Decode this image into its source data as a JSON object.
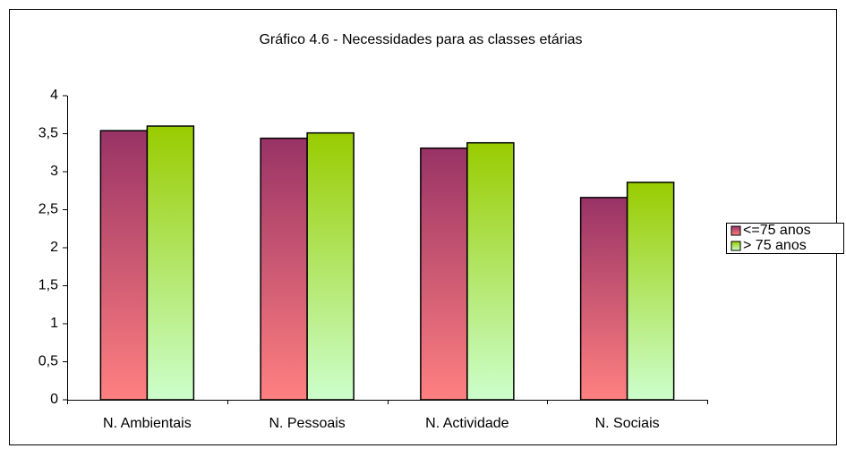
{
  "chart_data": {
    "type": "bar",
    "title": "Gráfico 4.6 - Necessidades para as classes etárias",
    "categories": [
      "N. Ambientais",
      "N. Pessoais",
      "N. Actividade",
      "N. Sociais"
    ],
    "series": [
      {
        "name": "<=75 anos",
        "color": "#993366",
        "values": [
          3.54,
          3.44,
          3.31,
          2.66
        ]
      },
      {
        "name": "> 75 anos",
        "color": "#99cc00",
        "values": [
          3.6,
          3.51,
          3.38,
          2.86
        ]
      }
    ],
    "ylim": [
      0,
      4
    ],
    "yticks": [
      0,
      {
        "value": 0.5,
        "label": "0,5"
      },
      1,
      {
        "value": 1.5,
        "label": "1,5"
      },
      2,
      {
        "value": 2.5,
        "label": "2,5"
      },
      3,
      {
        "value": 3.5,
        "label": "3,5"
      },
      4
    ],
    "legend": "right"
  }
}
